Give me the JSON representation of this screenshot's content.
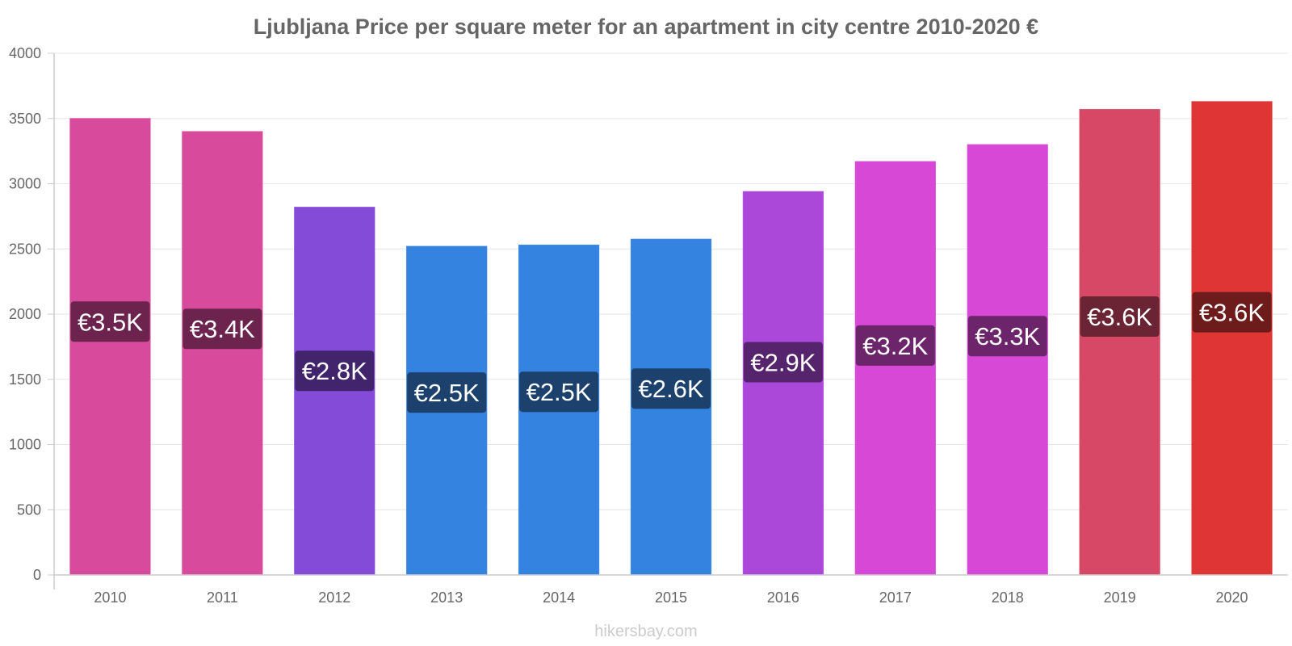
{
  "chart_data": {
    "type": "bar",
    "title": "Ljubljana Price per square meter for an apartment in city centre 2010-2020 €",
    "xlabel": "",
    "ylabel": "",
    "ylim": [
      0,
      4000
    ],
    "yticks": [
      0,
      500,
      1000,
      1500,
      2000,
      2500,
      3000,
      3500,
      4000
    ],
    "grid": true,
    "categories": [
      "2010",
      "2011",
      "2012",
      "2013",
      "2014",
      "2015",
      "2016",
      "2017",
      "2018",
      "2019",
      "2020"
    ],
    "values": [
      3500,
      3400,
      2820,
      2520,
      2530,
      2575,
      2940,
      3170,
      3300,
      3570,
      3630
    ],
    "data_labels": [
      "€3.5K",
      "€3.4K",
      "€2.8K",
      "€2.5K",
      "€2.5K",
      "€2.6K",
      "€2.9K",
      "€3.2K",
      "€3.3K",
      "€3.6K",
      "€3.6K"
    ],
    "bar_colors": [
      "#d84a9c",
      "#d84a9c",
      "#844ad8",
      "#3583e0",
      "#3583e0",
      "#3583e0",
      "#ab48da",
      "#d748d6",
      "#d748d6",
      "#d64866",
      "#e03535"
    ],
    "label_bg_colors": [
      "#6c244e",
      "#6c244e",
      "#42246c",
      "#1b416c",
      "#1b416c",
      "#1b416c",
      "#56246d",
      "#6c246b",
      "#6c246b",
      "#6b2433",
      "#6d1b1b"
    ]
  },
  "watermark": "hikersbay.com"
}
